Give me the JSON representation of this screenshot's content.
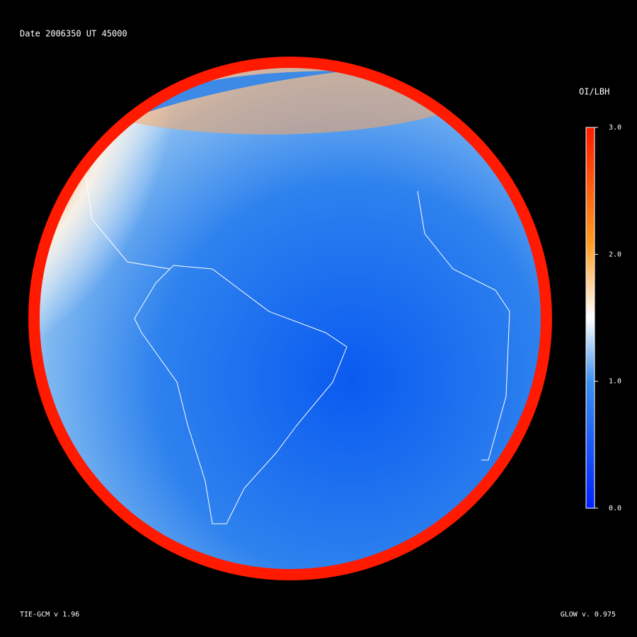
{
  "header": {
    "title": "Date 2006350  UT 45000"
  },
  "colorbar": {
    "label": "OI/LBH",
    "ticks": [
      {
        "value": 3,
        "label": "3.0"
      },
      {
        "value": 2,
        "label": "2.0"
      },
      {
        "value": 1,
        "label": "1.0"
      },
      {
        "value": 0,
        "label": "0.0"
      }
    ]
  },
  "footer": {
    "left": "TIE-GCM v 1.96",
    "right": "GLOW v. 0.975"
  }
}
